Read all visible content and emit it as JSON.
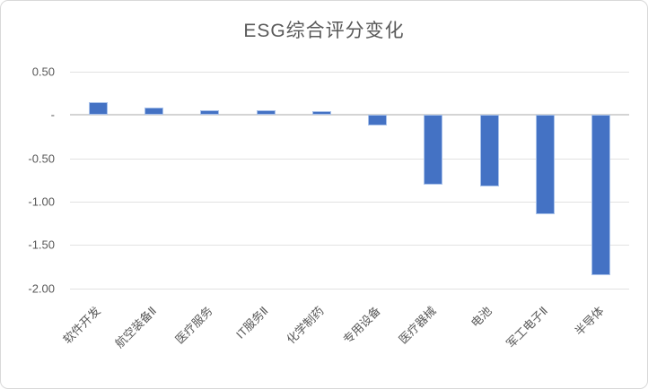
{
  "chart_data": {
    "type": "bar",
    "title": "ESG综合评分变化",
    "categories": [
      "软件开发",
      "航空装备Ⅱ",
      "医疗服务",
      "IT服务Ⅱ",
      "化学制药",
      "专用设备",
      "医疗器械",
      "电池",
      "军工电子Ⅱ",
      "半导体"
    ],
    "values": [
      0.15,
      0.09,
      0.06,
      0.06,
      0.04,
      -0.12,
      -0.8,
      -0.82,
      -1.15,
      -1.85
    ],
    "xlabel": "",
    "ylabel": "",
    "ylim": [
      -2.0,
      0.5
    ],
    "yticks": [
      0.5,
      0,
      -0.5,
      -1.0,
      -1.5,
      -2.0
    ],
    "ytick_labels": [
      "0.50",
      "-",
      "-0.50",
      "-1.00",
      "-1.50",
      "-2.00"
    ],
    "grid": true,
    "legend": false,
    "bar_color": "#4472c4",
    "grid_color": "#e2e2e2",
    "text_color": "#595959"
  }
}
